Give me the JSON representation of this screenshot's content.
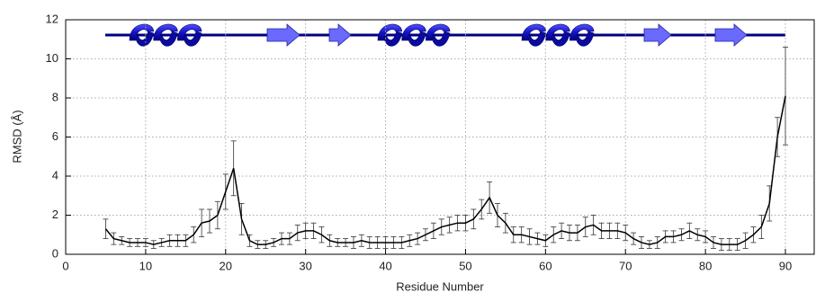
{
  "chart_data": {
    "type": "line",
    "x_label": "Residue Number",
    "y_label": "RMSD (Å)",
    "x": [
      5,
      6,
      7,
      8,
      9,
      10,
      11,
      12,
      13,
      14,
      15,
      16,
      17,
      18,
      19,
      20,
      21,
      22,
      23,
      24,
      25,
      26,
      27,
      28,
      29,
      30,
      31,
      32,
      33,
      34,
      35,
      36,
      37,
      38,
      39,
      40,
      41,
      42,
      43,
      44,
      45,
      46,
      47,
      48,
      49,
      50,
      51,
      52,
      53,
      54,
      55,
      56,
      57,
      58,
      59,
      60,
      61,
      62,
      63,
      64,
      65,
      66,
      67,
      68,
      69,
      70,
      71,
      72,
      73,
      74,
      75,
      76,
      77,
      78,
      79,
      80,
      81,
      82,
      83,
      84,
      85,
      86,
      87,
      88,
      89,
      90
    ],
    "series": [
      {
        "color": "#000000",
        "values": [
          1.3,
          0.8,
          0.7,
          0.6,
          0.6,
          0.6,
          0.5,
          0.6,
          0.7,
          0.7,
          0.7,
          1.0,
          1.6,
          1.7,
          2.0,
          3.2,
          4.4,
          1.8,
          0.7,
          0.5,
          0.5,
          0.6,
          0.8,
          0.8,
          1.1,
          1.2,
          1.2,
          1.0,
          0.7,
          0.6,
          0.6,
          0.6,
          0.7,
          0.6,
          0.6,
          0.6,
          0.6,
          0.6,
          0.7,
          0.8,
          1.0,
          1.2,
          1.4,
          1.5,
          1.6,
          1.6,
          1.8,
          2.3,
          2.9,
          2.0,
          1.6,
          1.0,
          1.0,
          0.9,
          0.8,
          0.7,
          1.0,
          1.2,
          1.1,
          1.1,
          1.4,
          1.5,
          1.2,
          1.2,
          1.2,
          1.1,
          0.8,
          0.6,
          0.5,
          0.6,
          0.9,
          0.9,
          1.0,
          1.2,
          1.0,
          0.9,
          0.6,
          0.5,
          0.5,
          0.5,
          0.7,
          1.0,
          1.4,
          2.6,
          6.0,
          8.1
        ],
        "errors": [
          0.5,
          0.3,
          0.2,
          0.2,
          0.2,
          0.2,
          0.2,
          0.2,
          0.3,
          0.3,
          0.3,
          0.4,
          0.7,
          0.6,
          0.7,
          0.9,
          1.4,
          0.8,
          0.3,
          0.2,
          0.2,
          0.2,
          0.3,
          0.3,
          0.4,
          0.4,
          0.4,
          0.4,
          0.3,
          0.2,
          0.2,
          0.3,
          0.3,
          0.3,
          0.3,
          0.3,
          0.3,
          0.3,
          0.3,
          0.3,
          0.3,
          0.4,
          0.4,
          0.4,
          0.4,
          0.4,
          0.5,
          0.5,
          0.8,
          0.6,
          0.5,
          0.4,
          0.4,
          0.4,
          0.3,
          0.3,
          0.4,
          0.4,
          0.4,
          0.4,
          0.5,
          0.5,
          0.4,
          0.4,
          0.4,
          0.4,
          0.3,
          0.3,
          0.2,
          0.3,
          0.3,
          0.3,
          0.3,
          0.4,
          0.3,
          0.3,
          0.3,
          0.3,
          0.3,
          0.3,
          0.4,
          0.4,
          0.6,
          0.9,
          1.0,
          2.5
        ]
      }
    ],
    "xlim": [
      0,
      93.6
    ],
    "xticks": [
      0,
      10,
      20,
      30,
      40,
      50,
      60,
      70,
      80,
      90
    ],
    "ylim": [
      0,
      12
    ],
    "yticks": [
      0,
      2,
      4,
      6,
      8,
      10,
      12
    ],
    "grid": true
  }
}
